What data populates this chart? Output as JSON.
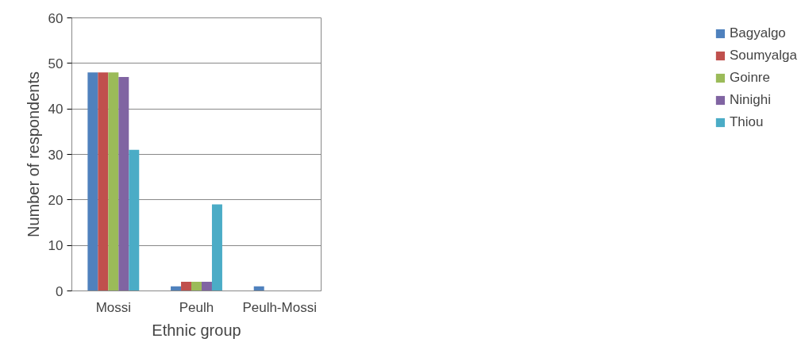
{
  "chart_data": {
    "type": "bar",
    "xlabel": "Ethnic group",
    "ylabel": "Number of respondents",
    "categories": [
      "Mossi",
      "Peulh",
      "Peulh-Mossi"
    ],
    "series": [
      {
        "name": "Bagyalgo",
        "color": "#4f81bd",
        "values": [
          48,
          1,
          1
        ]
      },
      {
        "name": "Soumyalga",
        "color": "#c0504d",
        "values": [
          48,
          2,
          0
        ]
      },
      {
        "name": "Goinre",
        "color": "#9bbb59",
        "values": [
          48,
          2,
          0
        ]
      },
      {
        "name": "Ninighi",
        "color": "#8064a2",
        "values": [
          47,
          2,
          0
        ]
      },
      {
        "name": "Thiou",
        "color": "#4bacc6",
        "values": [
          31,
          19,
          0
        ]
      }
    ],
    "ylim": [
      0,
      60
    ],
    "yticks": [
      0,
      10,
      20,
      30,
      40,
      50,
      60
    ],
    "grid": "y",
    "legend": "right"
  }
}
